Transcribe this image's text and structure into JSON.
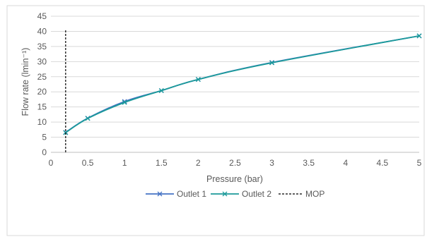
{
  "chart_data": {
    "type": "line",
    "xlabel": "Pressure (bar)",
    "ylabel": "Flow rate (lmin⁻¹)",
    "xlim": [
      0,
      5
    ],
    "ylim": [
      0,
      45
    ],
    "x_ticks": [
      0,
      0.5,
      1,
      1.5,
      2,
      2.5,
      3,
      3.5,
      4,
      4.5,
      5
    ],
    "x_tick_labels": [
      "0",
      "0.5",
      "1",
      "1.5",
      "2",
      "2.5",
      "3",
      "3.5",
      "4",
      "4.5",
      "5"
    ],
    "y_ticks": [
      0,
      5,
      10,
      15,
      20,
      25,
      30,
      35,
      40,
      45
    ],
    "y_tick_labels": [
      "0",
      "5",
      "10",
      "15",
      "20",
      "25",
      "30",
      "35",
      "40",
      "45"
    ],
    "grid": "horizontal",
    "legend_position": "bottom",
    "series": [
      {
        "name": "Outlet 1",
        "color": "#4472C4",
        "marker": "x",
        "x": [
          0.2,
          0.5,
          1,
          1.5,
          2,
          3,
          5
        ],
        "y": [
          6.6,
          11.3,
          16.8,
          20.4,
          24.1,
          29.7,
          38.5
        ]
      },
      {
        "name": "Outlet 2",
        "color": "#1B9A9A",
        "marker": "x",
        "x": [
          0.2,
          0.5,
          1,
          1.5,
          2,
          3,
          5
        ],
        "y": [
          6.5,
          11.2,
          16.5,
          20.4,
          24.1,
          29.6,
          38.5
        ]
      },
      {
        "name": "MOP",
        "color": "#000000",
        "style": "dashed",
        "x": [
          0.2,
          0.2
        ],
        "y": [
          0,
          40.5
        ]
      }
    ]
  }
}
